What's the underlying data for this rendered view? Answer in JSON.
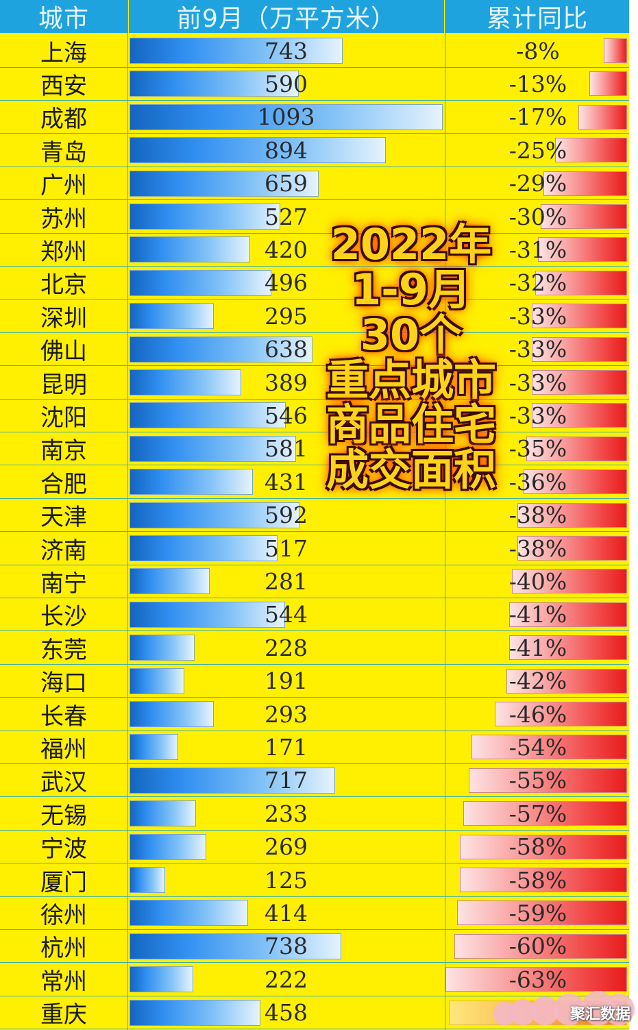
{
  "headers": {
    "city": "城市",
    "area": "前9月（万平方米）",
    "yoy": "累计同比"
  },
  "overlay_lines": [
    "2022年",
    "1-9月",
    "30个",
    "重点城市",
    "商品住宅",
    "成交面积"
  ],
  "watermark": "聚汇数据",
  "colors": {
    "background": "#ffef00",
    "header": "#1fa3df",
    "area_bar": "#2f8ef0",
    "yoy_bar": "#e81c1c",
    "overlay_text": "#ffd21a"
  },
  "chart_data": {
    "type": "table",
    "columns": [
      "城市",
      "前9月（万平方米）",
      "累计同比"
    ],
    "rows": [
      {
        "city": "上海",
        "area": 743,
        "area_label": "743",
        "yoy": -8,
        "yoy_label": "-8%"
      },
      {
        "city": "西安",
        "area": 590,
        "area_label": "590",
        "yoy": -13,
        "yoy_label": "-13%"
      },
      {
        "city": "成都",
        "area": 1093,
        "area_label": "1093",
        "yoy": -17,
        "yoy_label": "-17%"
      },
      {
        "city": "青岛",
        "area": 894,
        "area_label": "894",
        "yoy": -25,
        "yoy_label": "-25%"
      },
      {
        "city": "广州",
        "area": 659,
        "area_label": "659",
        "yoy": -29,
        "yoy_label": "-29%"
      },
      {
        "city": "苏州",
        "area": 527,
        "area_label": "527",
        "yoy": -30,
        "yoy_label": "-30%"
      },
      {
        "city": "郑州",
        "area": 420,
        "area_label": "420",
        "yoy": -31,
        "yoy_label": "-31%"
      },
      {
        "city": "北京",
        "area": 496,
        "area_label": "496",
        "yoy": -32,
        "yoy_label": "-32%"
      },
      {
        "city": "深圳",
        "area": 295,
        "area_label": "295",
        "yoy": -33,
        "yoy_label": "-33%"
      },
      {
        "city": "佛山",
        "area": 638,
        "area_label": "638",
        "yoy": -33,
        "yoy_label": "-33%"
      },
      {
        "city": "昆明",
        "area": 389,
        "area_label": "389",
        "yoy": -33,
        "yoy_label": "-33%"
      },
      {
        "city": "沈阳",
        "area": 546,
        "area_label": "546",
        "yoy": -33,
        "yoy_label": "-33%"
      },
      {
        "city": "南京",
        "area": 581,
        "area_label": "581",
        "yoy": -35,
        "yoy_label": "-35%"
      },
      {
        "city": "合肥",
        "area": 431,
        "area_label": "431",
        "yoy": -36,
        "yoy_label": "-36%"
      },
      {
        "city": "天津",
        "area": 592,
        "area_label": "592",
        "yoy": -38,
        "yoy_label": "-38%"
      },
      {
        "city": "济南",
        "area": 517,
        "area_label": "517",
        "yoy": -38,
        "yoy_label": "-38%"
      },
      {
        "city": "南宁",
        "area": 281,
        "area_label": "281",
        "yoy": -40,
        "yoy_label": "-40%"
      },
      {
        "city": "长沙",
        "area": 544,
        "area_label": "544",
        "yoy": -41,
        "yoy_label": "-41%"
      },
      {
        "city": "东莞",
        "area": 228,
        "area_label": "228",
        "yoy": -41,
        "yoy_label": "-41%"
      },
      {
        "city": "海口",
        "area": 191,
        "area_label": "191",
        "yoy": -42,
        "yoy_label": "-42%"
      },
      {
        "city": "长春",
        "area": 293,
        "area_label": "293",
        "yoy": -46,
        "yoy_label": "-46%"
      },
      {
        "city": "福州",
        "area": 171,
        "area_label": "171",
        "yoy": -54,
        "yoy_label": "-54%"
      },
      {
        "city": "武汉",
        "area": 717,
        "area_label": "717",
        "yoy": -55,
        "yoy_label": "-55%"
      },
      {
        "city": "无锡",
        "area": 233,
        "area_label": "233",
        "yoy": -57,
        "yoy_label": "-57%"
      },
      {
        "city": "宁波",
        "area": 269,
        "area_label": "269",
        "yoy": -58,
        "yoy_label": "-58%"
      },
      {
        "city": "厦门",
        "area": 125,
        "area_label": "125",
        "yoy": -58,
        "yoy_label": "-58%"
      },
      {
        "city": "徐州",
        "area": 414,
        "area_label": "414",
        "yoy": -59,
        "yoy_label": "-59%"
      },
      {
        "city": "杭州",
        "area": 738,
        "area_label": "738",
        "yoy": -60,
        "yoy_label": "-60%"
      },
      {
        "city": "常州",
        "area": 222,
        "area_label": "222",
        "yoy": -63,
        "yoy_label": "-63%"
      },
      {
        "city": "重庆",
        "area": 458,
        "area_label": "458",
        "yoy": null,
        "yoy_label": ""
      }
    ]
  }
}
